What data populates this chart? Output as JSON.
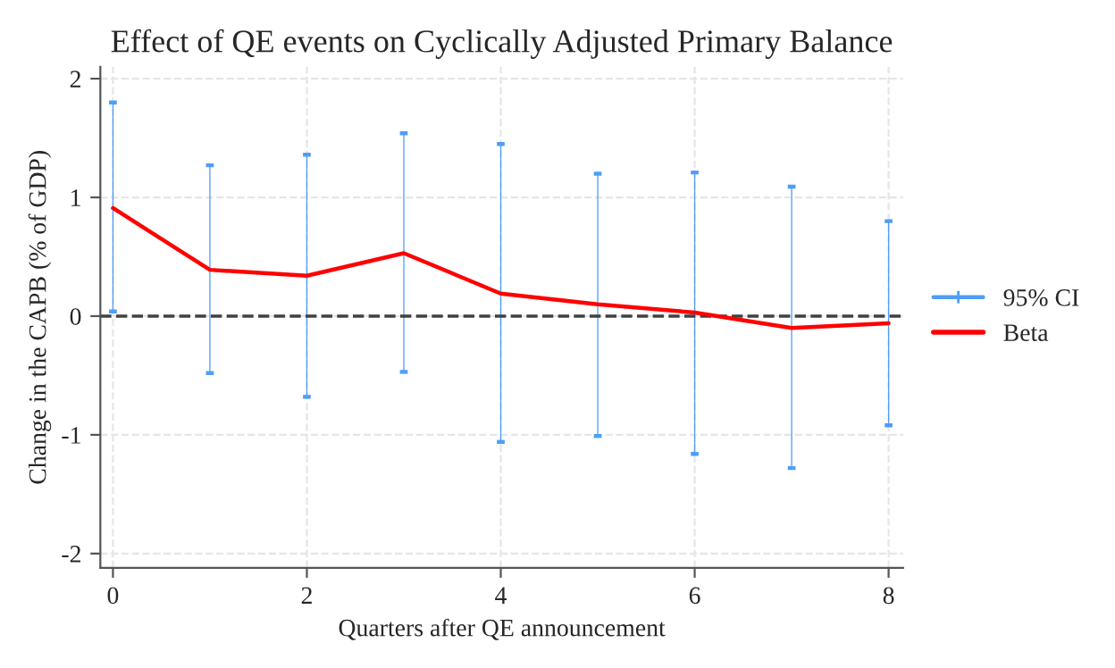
{
  "chart_data": {
    "type": "line",
    "title": "Effect of QE events on Cyclically Adjusted Primary Balance",
    "xlabel": "Quarters after QE announcement",
    "ylabel": "Change in the CAPB (% of GDP)",
    "x": [
      0,
      1,
      2,
      3,
      4,
      5,
      6,
      7,
      8
    ],
    "series": [
      {
        "name": "95% CI",
        "type": "bar",
        "color": "#4f9df7",
        "base": [
          0.04,
          -0.48,
          -0.68,
          -0.47,
          -1.06,
          -1.01,
          -1.16,
          -1.28,
          -0.92
        ],
        "values": [
          1.76,
          1.75,
          2.04,
          2.01,
          2.51,
          2.21,
          2.37,
          2.37,
          1.72
        ]
      },
      {
        "name": "Beta",
        "color": "#ff0000",
        "values": [
          0.91,
          0.39,
          0.34,
          0.53,
          0.19,
          0.1,
          0.03,
          -0.1,
          -0.06
        ]
      }
    ],
    "xlim": [
      -0.13,
      8.15
    ],
    "ylim": [
      -2.12,
      2.1
    ],
    "xticks": [
      0,
      2,
      4,
      6,
      8
    ],
    "yticks": [
      -2,
      -1,
      0,
      1,
      2
    ],
    "ref_lines": [
      {
        "axis": "y",
        "value": 0,
        "color": "#404040",
        "line_style": "dashed"
      }
    ],
    "grid": true,
    "legend": "right",
    "marker": "none",
    "line_style": "solid"
  }
}
